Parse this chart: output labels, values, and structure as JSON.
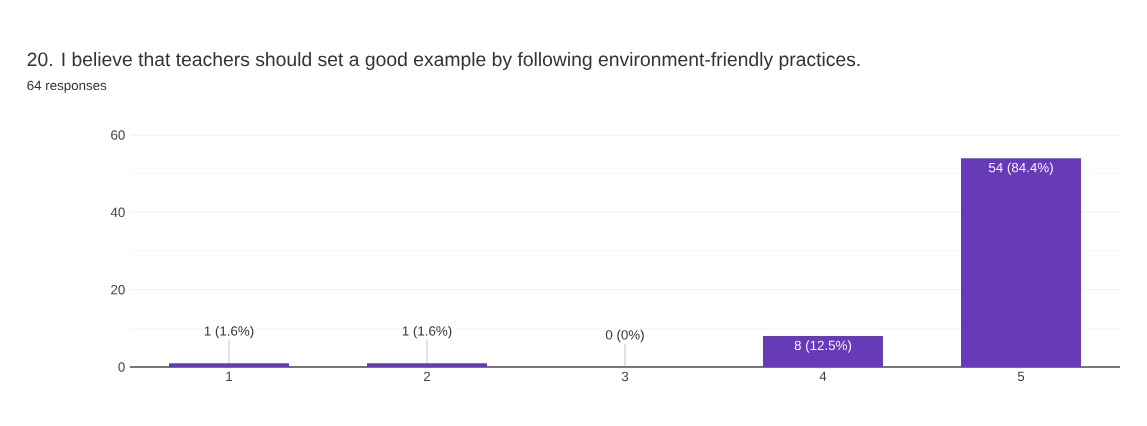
{
  "chart_data": {
    "type": "bar",
    "title": "20. I believe that teachers should set a good example by following environment-friendly practices.",
    "subtitle": "64 responses",
    "categories": [
      "1",
      "2",
      "3",
      "4",
      "5"
    ],
    "values": [
      1,
      1,
      0,
      8,
      54
    ],
    "value_labels": [
      "1 (1.6%)",
      "1 (1.6%)",
      "0 (0%)",
      "8 (12.5%)",
      "54 (84.4%)"
    ],
    "color": "#673ab7",
    "ylim": [
      0,
      60
    ],
    "yticks": [
      0,
      20,
      40,
      60
    ],
    "grid": "y"
  }
}
